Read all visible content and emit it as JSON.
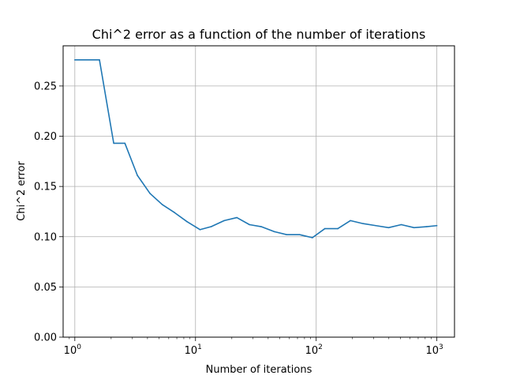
{
  "chart_data": {
    "type": "line",
    "title": "Chi^2 error as a function of the number of iterations",
    "xlabel": "Number of iterations",
    "ylabel": "Chi^2 error",
    "xscale": "log",
    "xlim": [
      0.8,
      1400
    ],
    "ylim": [
      0.0,
      0.29
    ],
    "grid": true,
    "x_ticks": [
      {
        "value": 1,
        "base": "10",
        "exp": "0"
      },
      {
        "value": 10,
        "base": "10",
        "exp": "1"
      },
      {
        "value": 100,
        "base": "10",
        "exp": "2"
      },
      {
        "value": 1000,
        "base": "10",
        "exp": "3"
      }
    ],
    "y_ticks": [
      {
        "value": 0.0,
        "label": "0.00"
      },
      {
        "value": 0.05,
        "label": "0.05"
      },
      {
        "value": 0.1,
        "label": "0.10"
      },
      {
        "value": 0.15,
        "label": "0.15"
      },
      {
        "value": 0.2,
        "label": "0.20"
      },
      {
        "value": 0.25,
        "label": "0.25"
      }
    ],
    "series": [
      {
        "color": "#1f77b4",
        "x": [
          1,
          1.6,
          2.1,
          2.6,
          3.3,
          4.2,
          5.3,
          6.7,
          8.5,
          10.9,
          13.5,
          17.3,
          22,
          28,
          35,
          45,
          57,
          73,
          93,
          118,
          151,
          192,
          245,
          312,
          398,
          507,
          647,
          824,
          1000
        ],
        "y": [
          0.276,
          0.276,
          0.193,
          0.193,
          0.161,
          0.143,
          0.132,
          0.124,
          0.115,
          0.107,
          0.11,
          0.116,
          0.119,
          0.112,
          0.11,
          0.105,
          0.102,
          0.102,
          0.099,
          0.108,
          0.108,
          0.116,
          0.113,
          0.111,
          0.109,
          0.112,
          0.109,
          0.11,
          0.111
        ]
      }
    ]
  }
}
